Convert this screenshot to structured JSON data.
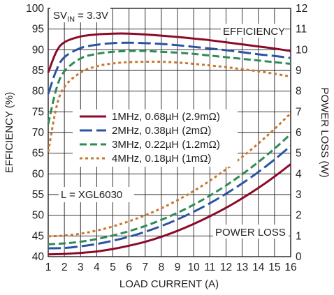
{
  "chart_data": {
    "type": "line",
    "xlabel": "LOAD CURRENT (A)",
    "ylabel": "EFFICIENCY (%)",
    "y2label": "POWER LOSS (W)",
    "xlim": [
      1,
      16
    ],
    "ylim": [
      40,
      100
    ],
    "y2lim": [
      0,
      12
    ],
    "x_ticks": [
      "1",
      "2",
      "3",
      "4",
      "5",
      "6",
      "7",
      "8",
      "9",
      "10",
      "11",
      "12",
      "13",
      "14",
      "15",
      "16"
    ],
    "y_ticks": [
      "40",
      "45",
      "50",
      "55",
      "60",
      "65",
      "70",
      "75",
      "80",
      "85",
      "90",
      "95",
      "100"
    ],
    "y2_ticks": [
      "0",
      "1",
      "2",
      "3",
      "4",
      "5",
      "6",
      "7",
      "8",
      "9",
      "10",
      "11",
      "12"
    ],
    "grid": true,
    "annotations": {
      "condition": "SVIN = 3.3V",
      "condition_main": "SV",
      "condition_sub": "IN",
      "condition_tail": " = 3.3V",
      "efficiency": "EFFICIENCY",
      "power_loss": "POWER LOSS",
      "inductor": "L = XGL6030"
    },
    "legend_position": "center-left",
    "series": [
      {
        "name": "1MHz, 0.68µH (2.9mΩ)",
        "color": "#8b0a2a",
        "dash": "solid",
        "efficiency": {
          "x": [
            1,
            1.5,
            2,
            3,
            4,
            5,
            6,
            7,
            8,
            9,
            10,
            11,
            12,
            13,
            14,
            15,
            16
          ],
          "y": [
            84.5,
            89.5,
            91.8,
            93.2,
            93.7,
            93.9,
            93.9,
            93.7,
            93.4,
            93.1,
            92.7,
            92.3,
            91.8,
            91.3,
            90.8,
            90.3,
            89.7
          ]
        },
        "power_loss": {
          "x": [
            1,
            2,
            3,
            4,
            5,
            6,
            7,
            8,
            9,
            10,
            11,
            12,
            13,
            14,
            15,
            16
          ],
          "y": [
            0.11,
            0.13,
            0.18,
            0.25,
            0.37,
            0.53,
            0.72,
            0.96,
            1.25,
            1.58,
            1.95,
            2.36,
            2.82,
            3.32,
            3.87,
            4.47
          ]
        }
      },
      {
        "name": "2MHz, 0.38µH (2mΩ)",
        "color": "#2b53a5",
        "dash": "long-dash",
        "efficiency": {
          "x": [
            1,
            1.5,
            2,
            3,
            4,
            5,
            6,
            7,
            8,
            9,
            10,
            11,
            12,
            13,
            14,
            15,
            16
          ],
          "y": [
            79.3,
            85,
            88.2,
            90.4,
            91.2,
            91.6,
            91.7,
            91.6,
            91.4,
            91.1,
            90.7,
            90.3,
            89.9,
            89.4,
            88.9,
            88.5,
            88
          ]
        },
        "power_loss": {
          "x": [
            1,
            2,
            3,
            4,
            5,
            6,
            7,
            8,
            9,
            10,
            11,
            12,
            13,
            14,
            15,
            16
          ],
          "y": [
            0.4,
            0.42,
            0.5,
            0.61,
            0.77,
            0.96,
            1.2,
            1.48,
            1.8,
            2.17,
            2.58,
            3.04,
            3.54,
            4.09,
            4.69,
            5.35
          ]
        }
      },
      {
        "name": "3MHz, 0.22µH (1.2mΩ)",
        "color": "#2e8b57",
        "dash": "medium-dash",
        "efficiency": {
          "x": [
            1,
            1.5,
            2,
            3,
            4,
            5,
            6,
            7,
            8,
            9,
            10,
            11,
            12,
            13,
            14,
            15,
            16
          ],
          "y": [
            72,
            80.5,
            84.8,
            87.9,
            89,
            89.5,
            89.7,
            89.7,
            89.5,
            89.3,
            89,
            88.6,
            88.2,
            87.8,
            87.4,
            87,
            86.6
          ]
        },
        "power_loss": {
          "x": [
            1,
            2,
            3,
            4,
            5,
            6,
            7,
            8,
            9,
            10,
            11,
            12,
            13,
            14,
            15,
            16
          ],
          "y": [
            0.6,
            0.64,
            0.72,
            0.85,
            1.02,
            1.23,
            1.48,
            1.78,
            2.12,
            2.51,
            2.95,
            3.44,
            3.98,
            4.57,
            5.22,
            5.92
          ]
        }
      },
      {
        "name": "4MHz, 0.18µH (1mΩ)",
        "color": "#c8782e",
        "dash": "dotted",
        "efficiency": {
          "x": [
            1,
            1.5,
            2,
            3,
            4,
            5,
            6,
            7,
            8,
            9,
            10,
            11,
            12,
            13,
            14,
            15,
            16
          ],
          "y": [
            65.3,
            76,
            81,
            84.5,
            86,
            86.7,
            87,
            87.1,
            87.1,
            86.9,
            86.6,
            86.2,
            85.8,
            85.3,
            84.8,
            84.2,
            83.5
          ]
        },
        "power_loss": {
          "x": [
            1,
            2,
            3,
            4,
            5,
            6,
            7,
            8,
            9,
            10,
            11,
            12,
            13,
            14,
            15,
            16
          ],
          "y": [
            0.98,
            1.02,
            1.11,
            1.26,
            1.46,
            1.71,
            2.0,
            2.34,
            2.73,
            3.17,
            3.67,
            4.22,
            4.82,
            5.47,
            6.17,
            6.93
          ]
        }
      }
    ]
  }
}
